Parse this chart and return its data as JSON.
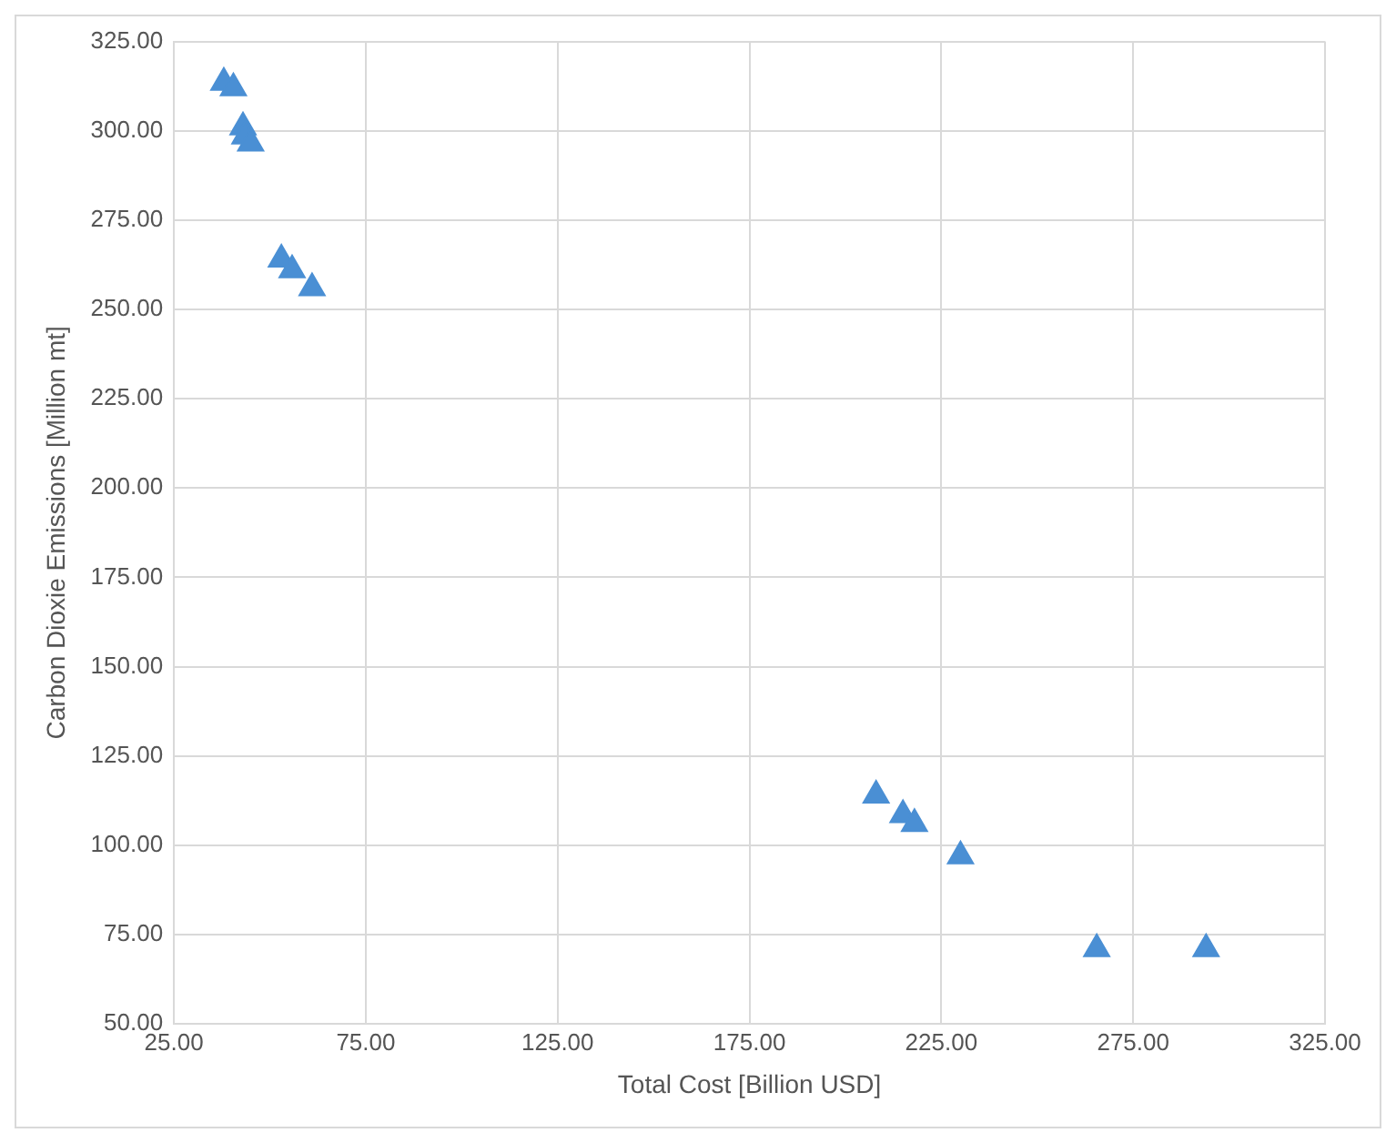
{
  "chart_data": {
    "type": "scatter",
    "xlabel": "Total Cost [Billion USD]",
    "ylabel": "Carbon Dioxie Emissions [Million mt]",
    "series": [
      {
        "color": "#4a8fd4",
        "x": [
          38,
          40.5,
          43,
          43.5,
          45,
          53,
          55.8,
          61,
          208,
          215,
          218,
          230,
          265.5,
          294
        ],
        "values": [
          313.5,
          312,
          301,
          298.5,
          296.5,
          264,
          261,
          256,
          114,
          108.5,
          106,
          97,
          71,
          71
        ]
      }
    ],
    "xlim": [
      25,
      325
    ],
    "xticks": [
      {
        "value": 25,
        "label": "25.00"
      },
      {
        "value": 75,
        "label": "75.00"
      },
      {
        "value": 125,
        "label": "125.00"
      },
      {
        "value": 175,
        "label": "175.00"
      },
      {
        "value": 225,
        "label": "225.00"
      },
      {
        "value": 275,
        "label": "275.00"
      },
      {
        "value": 325,
        "label": "325.00"
      }
    ],
    "ylim": [
      50,
      325
    ],
    "yticks": [
      {
        "value": 50,
        "label": "50.00"
      },
      {
        "value": 75,
        "label": "75.00"
      },
      {
        "value": 100,
        "label": "100.00"
      },
      {
        "value": 125,
        "label": "125.00"
      },
      {
        "value": 150,
        "label": "150.00"
      },
      {
        "value": 175,
        "label": "175.00"
      },
      {
        "value": 200,
        "label": "200.00"
      },
      {
        "value": 225,
        "label": "225.00"
      },
      {
        "value": 250,
        "label": "250.00"
      },
      {
        "value": 275,
        "label": "275.00"
      },
      {
        "value": 300,
        "label": "300.00"
      },
      {
        "value": 325,
        "label": "325.00"
      }
    ],
    "grid": true,
    "marker": "triangle",
    "legend": false
  }
}
